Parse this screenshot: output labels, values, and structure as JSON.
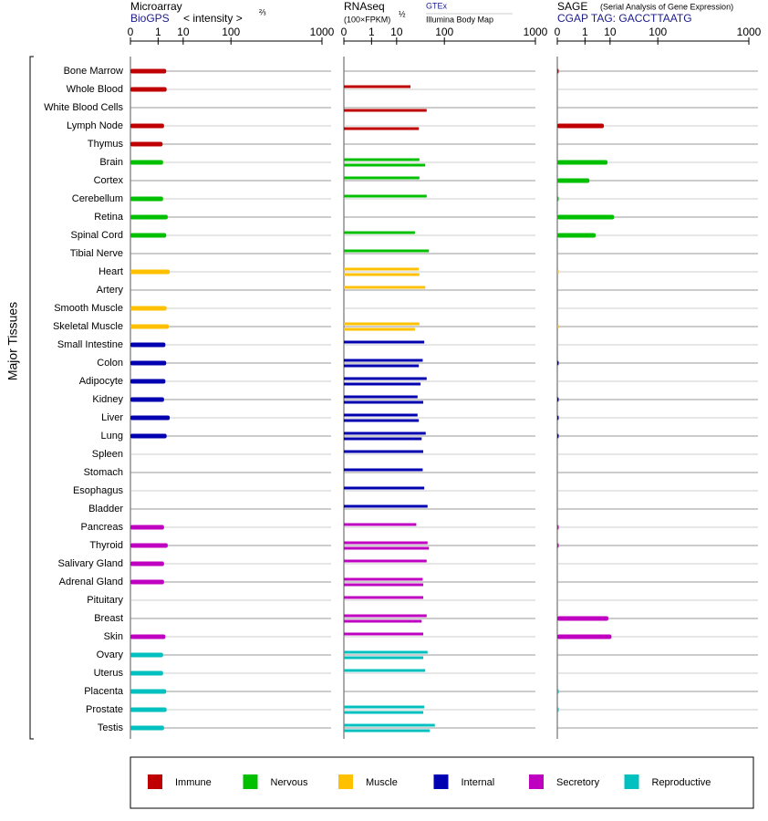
{
  "legend": [
    {
      "name": "Immune",
      "color": "#c00000"
    },
    {
      "name": "Nervous",
      "color": "#00c000"
    },
    {
      "name": "Muscle",
      "color": "#ffc000"
    },
    {
      "name": "Internal",
      "color": "#0000b0"
    },
    {
      "name": "Secretory",
      "color": "#c000c0"
    },
    {
      "name": "Reproductive",
      "color": "#00c0c0"
    }
  ],
  "chart_data": [
    {
      "type": "bar",
      "orientation": "horizontal",
      "title": "Microarray",
      "subtitle": "BioGPS",
      "axis_label": "< intensity >",
      "axis_label_power": "⅔",
      "y_label": "Major Tissues",
      "categories": [
        "Bone Marrow",
        "Whole Blood",
        "White Blood Cells",
        "Lymph Node",
        "Thymus",
        "Brain",
        "Cortex",
        "Cerebellum",
        "Retina",
        "Spinal Cord",
        "Tibial Nerve",
        "Heart",
        "Artery",
        "Smooth Muscle",
        "Skeletal Muscle",
        "Small Intestine",
        "Colon",
        "Adipocyte",
        "Kidney",
        "Liver",
        "Lung",
        "Spleen",
        "Stomach",
        "Esophagus",
        "Bladder",
        "Pancreas",
        "Thyroid",
        "Salivary Gland",
        "Adrenal Gland",
        "Pituitary",
        "Breast",
        "Skin",
        "Ovary",
        "Uterus",
        "Placenta",
        "Prostate",
        "Testis"
      ],
      "colors": [
        "#c00000",
        "#c00000",
        "#c00000",
        "#c00000",
        "#c00000",
        "#00c000",
        "#00c000",
        "#00c000",
        "#00c000",
        "#00c000",
        "#00c000",
        "#ffc000",
        "#ffc000",
        "#ffc000",
        "#ffc000",
        "#0000b0",
        "#0000b0",
        "#0000b0",
        "#0000b0",
        "#0000b0",
        "#0000b0",
        "#0000b0",
        "#0000b0",
        "#0000b0",
        "#0000b0",
        "#c000c0",
        "#c000c0",
        "#c000c0",
        "#c000c0",
        "#c000c0",
        "#c000c0",
        "#c000c0",
        "#00c0c0",
        "#00c0c0",
        "#00c0c0",
        "#00c0c0",
        "#00c0c0"
      ],
      "xlim": [
        0,
        1000
      ],
      "xticks": [
        0,
        1,
        10,
        100,
        1000
      ],
      "series": [
        {
          "values": [
            2.5,
            2.6,
            null,
            2.0,
            1.7,
            1.8,
            null,
            1.8,
            2.9,
            2.5,
            null,
            3.5,
            null,
            2.6,
            3.2,
            2.3,
            2.5,
            2.3,
            2.0,
            3.5,
            2.6,
            null,
            null,
            null,
            null,
            2.0,
            2.9,
            2.0,
            2.0,
            null,
            null,
            2.3,
            1.8,
            1.8,
            2.5,
            2.6,
            2.0
          ]
        }
      ]
    },
    {
      "type": "bar",
      "orientation": "horizontal",
      "title": "RNAseq",
      "axis_label": "(100×FPKM)",
      "axis_label_power": "½",
      "xlim": [
        0,
        1000
      ],
      "xticks": [
        0,
        1,
        10,
        100,
        1000
      ],
      "series": [
        {
          "name": "GTEx",
          "values": [
            null,
            23,
            null,
            null,
            null,
            36,
            36,
            50,
            null,
            29,
            55,
            35,
            47,
            null,
            36,
            45,
            42,
            50,
            33,
            33,
            48,
            43,
            42,
            45,
            52,
            31,
            52,
            50,
            42,
            43,
            50,
            43,
            52,
            47,
            null,
            45,
            70
          ]
        },
        {
          "name": "Illumina Body Map",
          "values": [
            null,
            null,
            50,
            35,
            null,
            47,
            null,
            null,
            null,
            null,
            null,
            36,
            null,
            null,
            29,
            null,
            35,
            38,
            43,
            35,
            40,
            null,
            null,
            null,
            null,
            null,
            55,
            null,
            43,
            null,
            40,
            null,
            43,
            null,
            null,
            43,
            57
          ]
        }
      ]
    },
    {
      "type": "bar",
      "orientation": "horizontal",
      "title": "SAGE",
      "subtitle": "CGAP TAG: GACCTTAATG",
      "note": "(Serial Analysis of Gene Expression)",
      "xlim": [
        0,
        1000
      ],
      "xticks": [
        0,
        1,
        10,
        100,
        1000
      ],
      "series": [
        {
          "values": [
            0,
            null,
            null,
            6.4,
            null,
            8.4,
            1.7,
            0,
            13,
            3.2,
            null,
            0,
            null,
            null,
            0,
            null,
            0,
            null,
            0,
            0,
            0,
            null,
            null,
            null,
            null,
            0,
            0,
            null,
            null,
            null,
            8.9,
            11,
            null,
            null,
            0,
            0,
            null
          ]
        }
      ]
    }
  ]
}
